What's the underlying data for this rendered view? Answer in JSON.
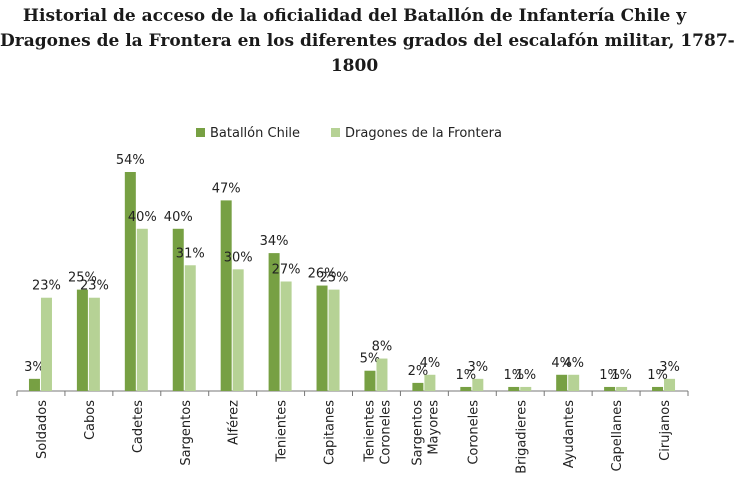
{
  "title_lines": [
    "Historial de acceso de la oficialidad del Batallón de Infantería Chile y",
    "Dragones de la Frontera en los diferentes grados del escalafón militar, 1787-",
    "1800"
  ],
  "colors": {
    "series1": "#77a043",
    "series2": "#b6d295",
    "axis": "#777777"
  },
  "chart_data": {
    "type": "bar",
    "title": "Historial de acceso de la oficialidad del Batallón de Infantería Chile y Dragones de la Frontera en los diferentes grados del escalafón militar, 1787-1800",
    "categories": [
      "Soldados",
      "Cabos",
      "Cadetes",
      "Sargentos",
      "Alférez",
      "Tenientes",
      "Capitanes",
      "Tenientes Coroneles",
      "Sargentos Mayores",
      "Coroneles",
      "Brigadieres",
      "Ayudantes",
      "Capellanes",
      "Cirujanos"
    ],
    "series": [
      {
        "name": "Batallón Chile",
        "values": [
          3,
          25,
          54,
          40,
          47,
          34,
          26,
          5,
          2,
          1,
          1,
          4,
          1,
          1
        ],
        "labels": [
          "3%",
          "25%",
          "54%",
          "40%",
          "47%",
          "34%",
          "26%",
          "5%",
          "2%",
          "1%",
          "1%",
          "4%",
          "1%",
          "1%"
        ]
      },
      {
        "name": "Dragones de la Frontera",
        "values": [
          23,
          23,
          40,
          31,
          30,
          27,
          25,
          8,
          4,
          3,
          1,
          4,
          1,
          3
        ],
        "labels": [
          "23%",
          "23%",
          "40%",
          "31%",
          "30%",
          "27%",
          "25%",
          "8%",
          "4%",
          "3%",
          "1%",
          "4%",
          "1%",
          "3%"
        ]
      }
    ],
    "xlabel": "",
    "ylabel": "",
    "ylim": [
      0,
      54
    ],
    "grid": false,
    "legend": "top-center"
  }
}
